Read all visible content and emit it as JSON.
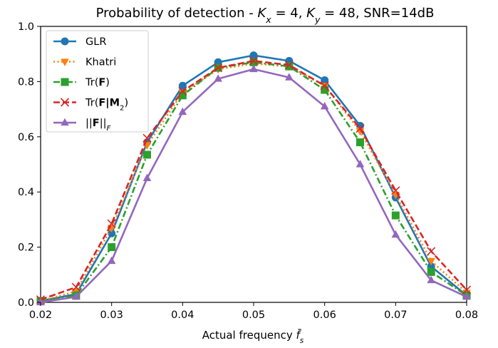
{
  "chart_data": {
    "type": "line",
    "title": "Probability of detection - Kₓ = 4, K_y = 48, SNR=14dB",
    "title_parts": {
      "prefix": "Probability of detection - ",
      "kx_var": "K",
      "kx_sub": "x",
      "kx_eq": " = 4, ",
      "ky_var": "K",
      "ky_sub": "y",
      "ky_eq": " = 48, SNR=14dB"
    },
    "xlabel": "Actual frequency f̄ₛ",
    "xlabel_parts": {
      "prefix": "Actual frequency ",
      "var": "f̄",
      "sub": "s"
    },
    "ylabel": "",
    "xlim": [
      0.02,
      0.08
    ],
    "ylim": [
      0.0,
      1.0
    ],
    "xticks": [
      "0.02",
      "0.03",
      "0.04",
      "0.05",
      "0.06",
      "0.07",
      "0.08"
    ],
    "yticks": [
      "0.0",
      "0.2",
      "0.4",
      "0.6",
      "0.8",
      "1.0"
    ],
    "grid": false,
    "legend_position": "upper-left",
    "x": [
      0.02,
      0.025,
      0.03,
      0.035,
      0.04,
      0.045,
      0.05,
      0.055,
      0.06,
      0.065,
      0.07,
      0.075,
      0.08
    ],
    "series": [
      {
        "name": "GLR",
        "label_parts": [
          {
            "t": "GLR",
            "b": false
          }
        ],
        "color": "#1f77b4",
        "linestyle": "solid",
        "marker": "circle",
        "values": [
          0.005,
          0.03,
          0.25,
          0.58,
          0.785,
          0.87,
          0.895,
          0.875,
          0.805,
          0.64,
          0.38,
          0.13,
          0.025
        ]
      },
      {
        "name": "Khatri",
        "label_parts": [
          {
            "t": "Khatri",
            "b": false
          }
        ],
        "color": "#ff7f0e",
        "linestyle": "dotted",
        "marker": "triangle-down",
        "values": [
          0.005,
          0.04,
          0.27,
          0.57,
          0.76,
          0.845,
          0.865,
          0.855,
          0.785,
          0.62,
          0.39,
          0.15,
          0.035
        ]
      },
      {
        "name": "Tr(F)",
        "label_parts": [
          {
            "t": "Tr(",
            "b": false
          },
          {
            "t": "F",
            "b": true
          },
          {
            "t": ")",
            "b": false
          }
        ],
        "color": "#2ca02c",
        "linestyle": "dashdot",
        "marker": "square",
        "values": [
          0.005,
          0.025,
          0.2,
          0.535,
          0.75,
          0.85,
          0.87,
          0.855,
          0.77,
          0.58,
          0.315,
          0.11,
          0.025
        ]
      },
      {
        "name": "Tr(F|M2)",
        "label_parts": [
          {
            "t": "Tr(",
            "b": false
          },
          {
            "t": "F",
            "b": true
          },
          {
            "t": "|",
            "b": true
          },
          {
            "t": "M",
            "b": true
          },
          {
            "t": "2",
            "b": false,
            "sub": true
          },
          {
            "t": ")",
            "b": false
          }
        ],
        "color": "#d62728",
        "linestyle": "dashed",
        "marker": "x",
        "values": [
          0.01,
          0.055,
          0.285,
          0.595,
          0.765,
          0.85,
          0.875,
          0.86,
          0.785,
          0.63,
          0.405,
          0.185,
          0.045
        ]
      },
      {
        "name": "||F||F",
        "label_parts": [
          {
            "t": "||",
            "b": false
          },
          {
            "t": "F",
            "b": true
          },
          {
            "t": "||",
            "b": false
          },
          {
            "t": "F",
            "b": false,
            "sub": true,
            "i": true
          }
        ],
        "color": "#9467bd",
        "linestyle": "solid",
        "marker": "triangle-up",
        "values": [
          0.0,
          0.02,
          0.15,
          0.45,
          0.69,
          0.81,
          0.845,
          0.815,
          0.71,
          0.5,
          0.245,
          0.08,
          0.02
        ]
      }
    ]
  }
}
